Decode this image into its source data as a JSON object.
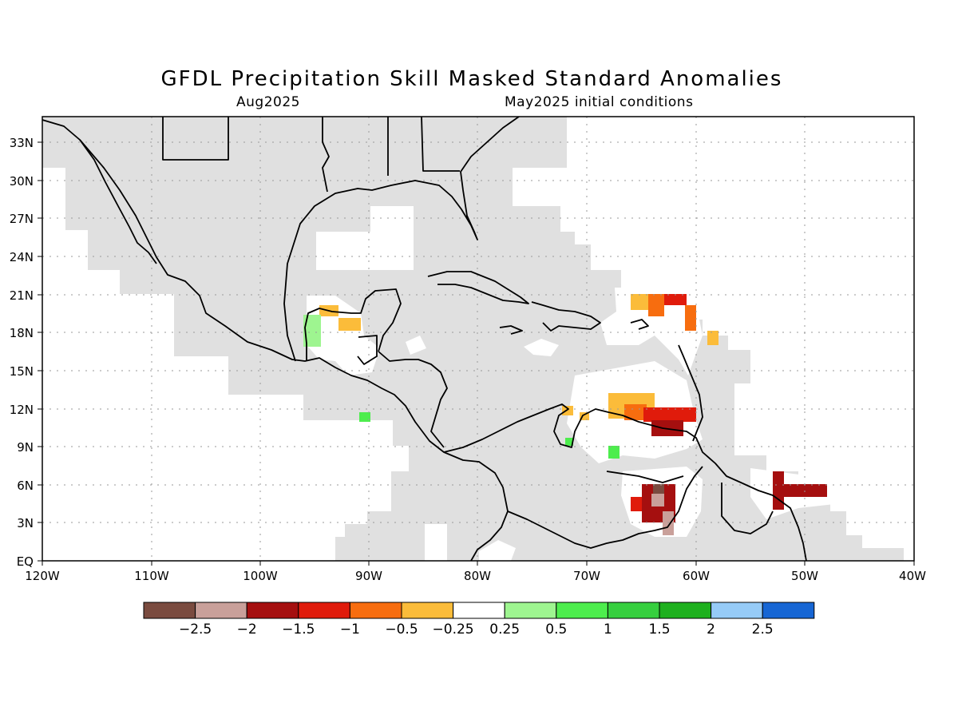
{
  "title": "GFDL Precipitation Skill Masked Standard Anomalies",
  "subtitle_left": "Aug2025",
  "subtitle_right": "May2025 initial conditions",
  "map": {
    "lon_range": [
      -120,
      -40
    ],
    "lat_range": [
      0,
      35
    ],
    "lat_ticks": [
      "33N",
      "30N",
      "27N",
      "24N",
      "21N",
      "18N",
      "15N",
      "12N",
      "9N",
      "6N",
      "3N",
      "EQ"
    ],
    "lon_ticks": [
      "120W",
      "110W",
      "100W",
      "90W",
      "80W",
      "70W",
      "60W",
      "50W",
      "40W"
    ],
    "grid": true,
    "masked_color": "#e0e0e0",
    "coastline_color": "#000000"
  },
  "colorbar": {
    "colors": [
      "#7a4b3f",
      "#c9a09a",
      "#a50f0f",
      "#e01b0b",
      "#f76d0f",
      "#fbbc3a",
      "#ffffff",
      "#9ef590",
      "#4ded4d",
      "#36cf3e",
      "#1eb01e",
      "#96cbf7",
      "#1766d4"
    ],
    "labels": [
      "−2.5",
      "−2",
      "−1.5",
      "−1",
      "−0.5",
      "−0.25",
      "0.25",
      "0.5",
      "1",
      "1.5",
      "2",
      "2.5"
    ]
  }
}
